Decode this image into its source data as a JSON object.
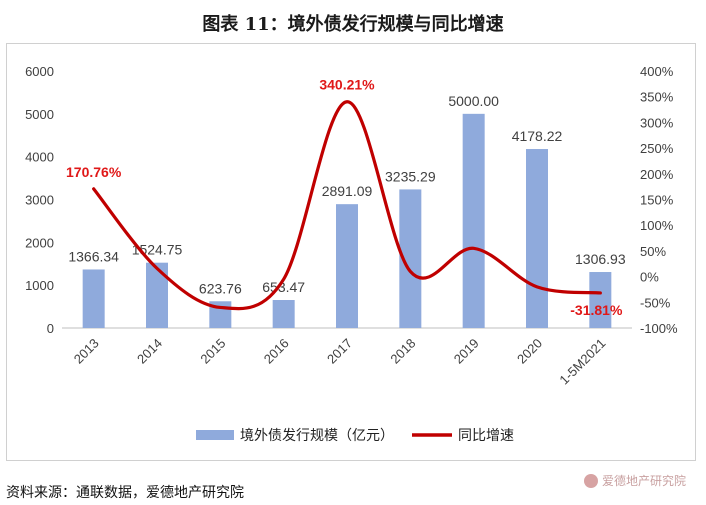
{
  "title": "图表 11：境外债发行规模与同比增速",
  "source": "资料来源：通联数据，爱德地产研究院",
  "watermark": "爱德地产研究院",
  "colors": {
    "bar": "#8faadc",
    "line": "#c00000",
    "line_label": "#e01818",
    "axis_text": "#404040"
  },
  "chart_data": {
    "type": "bar+line",
    "categories": [
      "2013",
      "2014",
      "2015",
      "2016",
      "2017",
      "2018",
      "2019",
      "2020",
      "1-5M2021"
    ],
    "series": [
      {
        "name": "境外债发行规模（亿元）",
        "type": "bar",
        "axis": "left",
        "values": [
          1366.34,
          1524.75,
          623.76,
          653.47,
          2891.09,
          3235.29,
          5000.0,
          4178.22,
          1306.93
        ],
        "labels": [
          "1366.34",
          "1524.75",
          "623.76",
          "653.47",
          "2891.09",
          "3235.29",
          "5000.00",
          "4178.22",
          "1306.93"
        ]
      },
      {
        "name": "同比增速",
        "type": "line",
        "axis": "right",
        "values": [
          170.76,
          16,
          -60,
          -5,
          340.21,
          10,
          55,
          -20,
          -31.81
        ],
        "labels": [
          "170.76%",
          "",
          "",
          "",
          "340.21%",
          "",
          "",
          "",
          "-31.81%"
        ]
      }
    ],
    "y_left": {
      "min": 0,
      "max": 6000,
      "ticks": [
        "0",
        "1000",
        "2000",
        "3000",
        "4000",
        "5000",
        "6000"
      ]
    },
    "y_right": {
      "min": -100,
      "max": 400,
      "ticks": [
        "-100%",
        "-50%",
        "0%",
        "50%",
        "100%",
        "150%",
        "200%",
        "250%",
        "300%",
        "350%",
        "400%"
      ]
    },
    "legend": {
      "position": "bottom",
      "items": [
        "境外债发行规模（亿元）",
        "同比增速"
      ]
    }
  }
}
